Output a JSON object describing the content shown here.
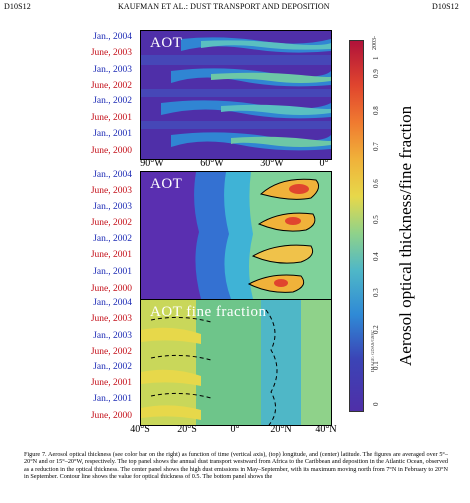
{
  "header": {
    "left": "D10S12",
    "center": "KAUFMAN ET AL.: DUST TRANSPORT AND DEPOSITION",
    "right": "D10S12"
  },
  "panels": [
    {
      "title": "AOT",
      "y_labels": [
        "Jan., 2004",
        "June, 2003",
        "Jan., 2003",
        "June, 2002",
        "Jan., 2002",
        "June, 2001",
        "Jan., 2001",
        "June, 2000"
      ],
      "x_ticks": [
        "90°W",
        "60°W",
        "30°W",
        "0°"
      ]
    },
    {
      "title": "AOT",
      "y_labels": [
        "Jan., 2004",
        "June, 2003",
        "Jan., 2003",
        "June, 2002",
        "Jan., 2002",
        "June, 2001",
        "Jan., 2001",
        "June, 2000"
      ],
      "x_ticks": []
    },
    {
      "title": "AOT fine fraction",
      "y_labels": [
        "Jan., 2004",
        "June, 2003",
        "Jan., 2003",
        "June, 2002",
        "Jan., 2002",
        "June, 2001",
        "Jan., 2001",
        "June, 2000"
      ],
      "x_ticks": [
        "40°S",
        "20°S",
        "0°",
        "20°N",
        "40°N"
      ]
    }
  ],
  "colorbar": {
    "label": "Aerosol optical thickness/fine fraction",
    "ticks": [
      "0",
      "0.1",
      "0.2",
      "0.3",
      "0.4",
      "0.5",
      "0.6",
      "0.7",
      "0.8",
      "0.9",
      "1"
    ],
    "top_tick": "2003-",
    "credit": "IMAGE: GDAS/GSFC"
  },
  "caption": "Figure 7. Aerosol optical thickness (see color bar on the right) as function of time (vertical axis), (top) longitude, and (center) latitude. The figures are averaged over 5°–20°N and or 15°–20°W, respectively. The top panel shows the annual dust transport westward from Africa to the Caribbean and deposition in the Atlantic Ocean, observed as a reduction in the optical thickness. The center panel shows the high dust emissions in May–September, with its maximum moving north from 7°N in February to 20°N in September. Contour line shows the value for optical thickness of 0.5. The bottom panel shows the"
}
